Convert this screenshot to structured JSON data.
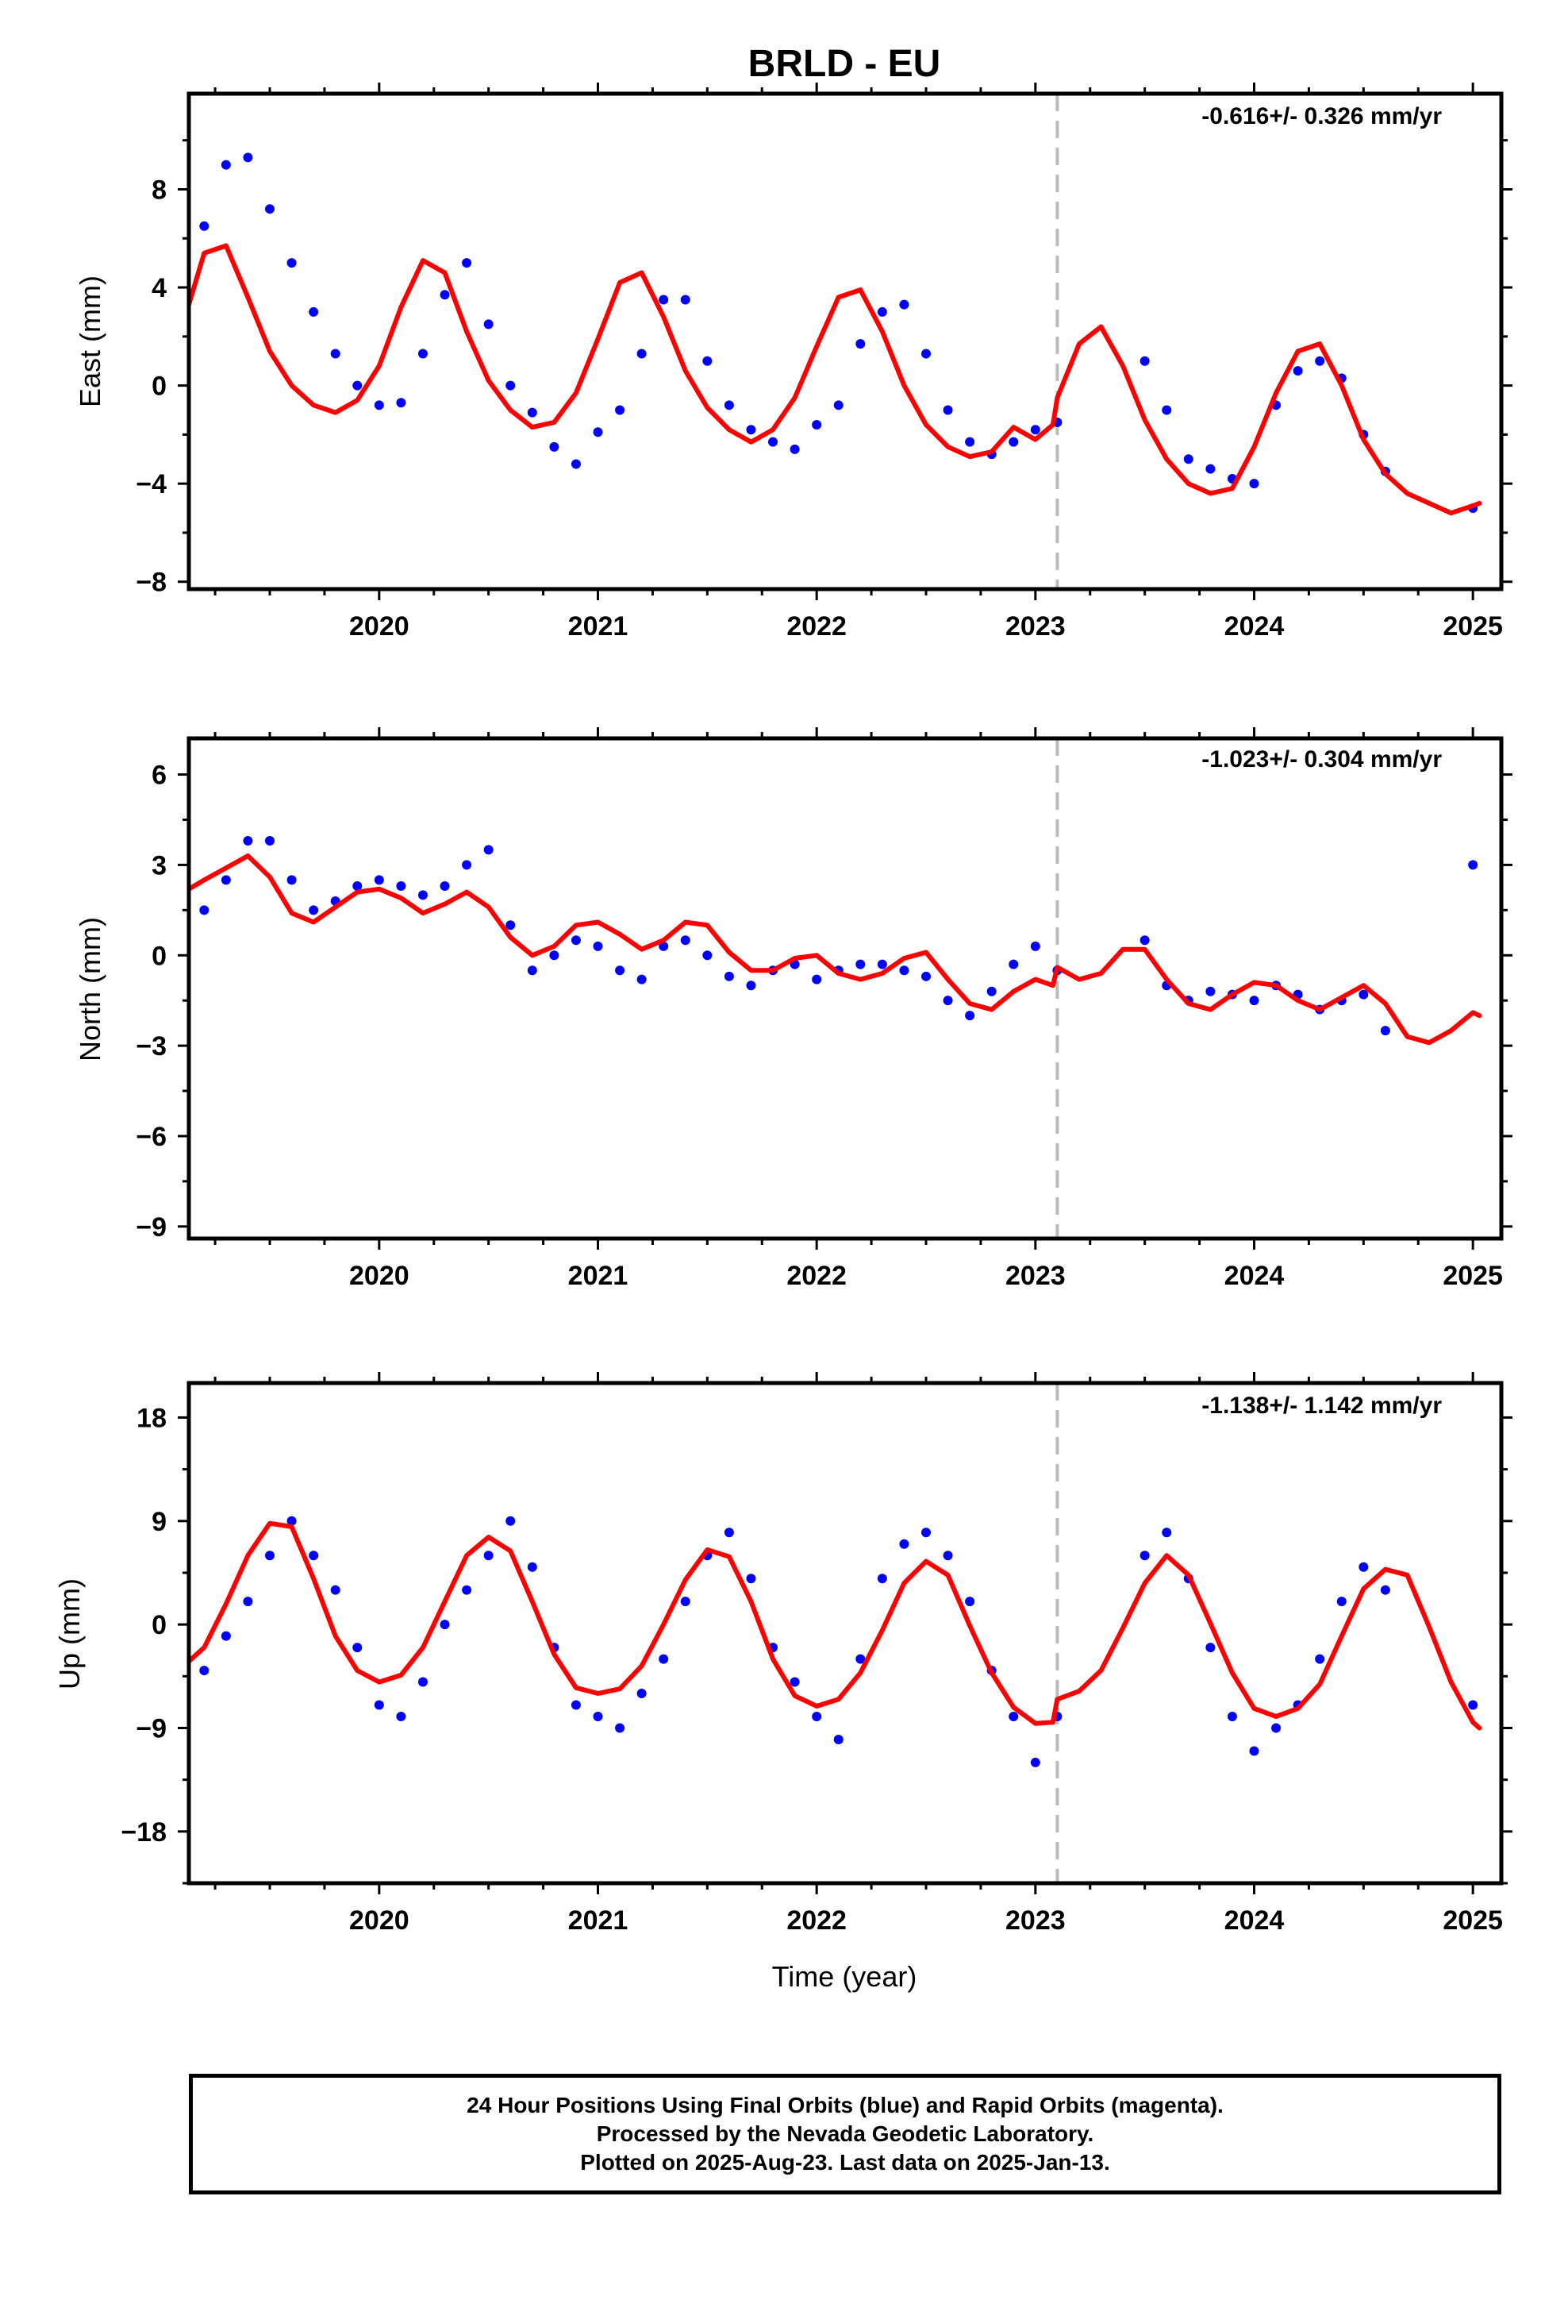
{
  "title": "BRLD - EU",
  "xlabel": "Time (year)",
  "footer": {
    "line1": "24 Hour Positions Using Final Orbits (blue) and Rapid Orbits (magenta).",
    "line2": "Processed by the Nevada Geodetic Laboratory.",
    "line3": "Plotted on 2025-Aug-23. Last data on 2025-Jan-13."
  },
  "colors": {
    "final_orbits": "#0000ff",
    "model_fit": "#ff0000",
    "antenna_change": "#bbbbbb"
  },
  "chart_data": [
    {
      "type": "scatter",
      "ylabel": "East (mm)",
      "rate": "-0.616+/- 0.326 mm/yr",
      "xlim": [
        2019.13,
        2025.13
      ],
      "ylim": [
        -8.3,
        11.9
      ],
      "xticks": [
        2020,
        2021,
        2022,
        2023,
        2024,
        2025
      ],
      "yticks": [
        -8,
        -4,
        0,
        4,
        8
      ],
      "grid": false,
      "discontinuity_x": 2023.1,
      "series": [
        {
          "type": "scatter",
          "x": [
            2019.2,
            2019.3,
            2019.4,
            2019.5,
            2019.6,
            2019.7,
            2019.8,
            2019.9,
            2020.0,
            2020.1,
            2020.2,
            2020.3,
            2020.4,
            2020.5,
            2020.6,
            2020.7,
            2020.8,
            2020.9,
            2021.0,
            2021.1,
            2021.2,
            2021.3,
            2021.4,
            2021.5,
            2021.6,
            2021.7,
            2021.8,
            2021.9,
            2022.0,
            2022.1,
            2022.2,
            2022.3,
            2022.4,
            2022.5,
            2022.6,
            2022.7,
            2022.8,
            2022.9,
            2023.0,
            2023.1,
            2023.5,
            2023.6,
            2023.7,
            2023.8,
            2023.9,
            2024.0,
            2024.1,
            2024.2,
            2024.3,
            2024.4,
            2024.5,
            2024.6,
            2025.0
          ],
          "y": [
            6.5,
            9.0,
            9.3,
            7.2,
            5.0,
            3.0,
            1.3,
            0.0,
            -0.8,
            -0.7,
            1.3,
            3.7,
            5.0,
            2.5,
            0.0,
            -1.1,
            -2.5,
            -3.2,
            -1.9,
            -1.0,
            1.3,
            3.5,
            3.5,
            1.0,
            -0.8,
            -1.8,
            -2.3,
            -2.6,
            -1.6,
            -0.8,
            1.7,
            3.0,
            3.3,
            1.3,
            -1.0,
            -2.3,
            -2.8,
            -2.3,
            -1.8,
            -1.5,
            1.0,
            -1.0,
            -3.0,
            -3.4,
            -3.8,
            -4.0,
            -0.8,
            0.6,
            1.0,
            0.3,
            -2.0,
            -3.5,
            -5.0
          ]
        },
        {
          "type": "line",
          "x": [
            2019.13,
            2019.2,
            2019.3,
            2019.4,
            2019.5,
            2019.6,
            2019.7,
            2019.8,
            2019.9,
            2020.0,
            2020.1,
            2020.2,
            2020.3,
            2020.4,
            2020.5,
            2020.6,
            2020.7,
            2020.8,
            2020.9,
            2021.0,
            2021.1,
            2021.2,
            2021.3,
            2021.4,
            2021.5,
            2021.6,
            2021.7,
            2021.8,
            2021.9,
            2022.0,
            2022.1,
            2022.2,
            2022.3,
            2022.4,
            2022.5,
            2022.6,
            2022.7,
            2022.8,
            2022.9,
            2023.0,
            2023.08,
            2023.1,
            2023.2,
            2023.3,
            2023.4,
            2023.5,
            2023.6,
            2023.7,
            2023.8,
            2023.9,
            2024.0,
            2024.1,
            2024.2,
            2024.3,
            2024.4,
            2024.5,
            2024.6,
            2024.7,
            2024.8,
            2024.9,
            2025.0,
            2025.03
          ],
          "y": [
            3.3,
            5.4,
            5.7,
            3.6,
            1.4,
            0.0,
            -0.8,
            -1.1,
            -0.6,
            0.8,
            3.2,
            5.1,
            4.6,
            2.2,
            0.2,
            -1.0,
            -1.7,
            -1.5,
            -0.3,
            1.9,
            4.2,
            4.6,
            2.8,
            0.6,
            -0.9,
            -1.8,
            -2.3,
            -1.8,
            -0.5,
            1.6,
            3.6,
            3.9,
            2.2,
            0.0,
            -1.6,
            -2.5,
            -2.9,
            -2.7,
            -1.7,
            -2.2,
            -1.6,
            -0.5,
            1.7,
            2.4,
            0.8,
            -1.4,
            -3.0,
            -4.0,
            -4.4,
            -4.2,
            -2.5,
            -0.3,
            1.4,
            1.7,
            0.0,
            -2.2,
            -3.6,
            -4.4,
            -4.8,
            -5.2,
            -4.9,
            -4.8
          ]
        }
      ]
    },
    {
      "type": "scatter",
      "ylabel": "North (mm)",
      "rate": "-1.023+/- 0.304 mm/yr",
      "xlim": [
        2019.13,
        2025.13
      ],
      "ylim": [
        -9.4,
        7.2
      ],
      "xticks": [
        2020,
        2021,
        2022,
        2023,
        2024,
        2025
      ],
      "yticks": [
        -9,
        -6,
        -3,
        0,
        3,
        6
      ],
      "grid": false,
      "discontinuity_x": 2023.1,
      "series": [
        {
          "type": "scatter",
          "x": [
            2019.2,
            2019.3,
            2019.4,
            2019.5,
            2019.6,
            2019.7,
            2019.8,
            2019.9,
            2020.0,
            2020.1,
            2020.2,
            2020.3,
            2020.4,
            2020.5,
            2020.6,
            2020.7,
            2020.8,
            2020.9,
            2021.0,
            2021.1,
            2021.2,
            2021.3,
            2021.4,
            2021.5,
            2021.6,
            2021.7,
            2021.8,
            2021.9,
            2022.0,
            2022.1,
            2022.2,
            2022.3,
            2022.4,
            2022.5,
            2022.6,
            2022.7,
            2022.8,
            2022.9,
            2023.0,
            2023.1,
            2023.5,
            2023.6,
            2023.7,
            2023.8,
            2023.9,
            2024.0,
            2024.1,
            2024.2,
            2024.3,
            2024.4,
            2024.5,
            2024.6,
            2025.0
          ],
          "y": [
            1.5,
            2.5,
            3.8,
            3.8,
            2.5,
            1.5,
            1.8,
            2.3,
            2.5,
            2.3,
            2.0,
            2.3,
            3.0,
            3.5,
            1.0,
            -0.5,
            0.0,
            0.5,
            0.3,
            -0.5,
            -0.8,
            0.3,
            0.5,
            0.0,
            -0.7,
            -1.0,
            -0.5,
            -0.3,
            -0.8,
            -0.5,
            -0.3,
            -0.3,
            -0.5,
            -0.7,
            -1.5,
            -2.0,
            -1.2,
            -0.3,
            0.3,
            -0.5,
            0.5,
            -1.0,
            -1.5,
            -1.2,
            -1.3,
            -1.5,
            -1.0,
            -1.3,
            -1.8,
            -1.5,
            -1.3,
            -2.5,
            3.0
          ]
        },
        {
          "type": "line",
          "x": [
            2019.13,
            2019.2,
            2019.3,
            2019.4,
            2019.5,
            2019.6,
            2019.7,
            2019.8,
            2019.9,
            2020.0,
            2020.1,
            2020.2,
            2020.3,
            2020.4,
            2020.5,
            2020.6,
            2020.7,
            2020.8,
            2020.9,
            2021.0,
            2021.1,
            2021.2,
            2021.3,
            2021.4,
            2021.5,
            2021.6,
            2021.7,
            2021.8,
            2021.9,
            2022.0,
            2022.1,
            2022.2,
            2022.3,
            2022.4,
            2022.5,
            2022.6,
            2022.7,
            2022.8,
            2022.9,
            2023.0,
            2023.08,
            2023.1,
            2023.2,
            2023.3,
            2023.4,
            2023.5,
            2023.6,
            2023.7,
            2023.8,
            2023.9,
            2024.0,
            2024.1,
            2024.2,
            2024.3,
            2024.4,
            2024.5,
            2024.6,
            2024.7,
            2024.8,
            2024.9,
            2025.0,
            2025.03
          ],
          "y": [
            2.2,
            2.5,
            2.9,
            3.3,
            2.6,
            1.4,
            1.1,
            1.6,
            2.1,
            2.2,
            1.9,
            1.4,
            1.7,
            2.1,
            1.6,
            0.6,
            0.0,
            0.3,
            1.0,
            1.1,
            0.7,
            0.2,
            0.5,
            1.1,
            1.0,
            0.1,
            -0.5,
            -0.5,
            -0.1,
            0.0,
            -0.6,
            -0.8,
            -0.6,
            -0.1,
            0.1,
            -0.8,
            -1.6,
            -1.8,
            -1.2,
            -0.8,
            -1.0,
            -0.4,
            -0.8,
            -0.6,
            0.2,
            0.2,
            -0.8,
            -1.6,
            -1.8,
            -1.3,
            -0.9,
            -1.0,
            -1.5,
            -1.8,
            -1.4,
            -1.0,
            -1.6,
            -2.7,
            -2.9,
            -2.5,
            -1.9,
            -2.0
          ]
        }
      ]
    },
    {
      "type": "scatter",
      "ylabel": "Up (mm)",
      "rate": "-1.138+/- 1.142 mm/yr",
      "xlim": [
        2019.13,
        2025.13
      ],
      "ylim": [
        -22.5,
        21
      ],
      "xticks": [
        2020,
        2021,
        2022,
        2023,
        2024,
        2025
      ],
      "yticks": [
        -18,
        -9,
        0,
        9,
        18
      ],
      "grid": false,
      "discontinuity_x": 2023.1,
      "series": [
        {
          "type": "scatter",
          "x": [
            2019.2,
            2019.3,
            2019.4,
            2019.5,
            2019.6,
            2019.7,
            2019.8,
            2019.9,
            2020.0,
            2020.1,
            2020.2,
            2020.3,
            2020.4,
            2020.5,
            2020.6,
            2020.7,
            2020.8,
            2020.9,
            2021.0,
            2021.1,
            2021.2,
            2021.3,
            2021.4,
            2021.5,
            2021.6,
            2021.7,
            2021.8,
            2021.9,
            2022.0,
            2022.1,
            2022.2,
            2022.3,
            2022.4,
            2022.5,
            2022.6,
            2022.7,
            2022.8,
            2022.9,
            2023.0,
            2023.1,
            2023.5,
            2023.6,
            2023.7,
            2023.8,
            2023.9,
            2024.0,
            2024.1,
            2024.2,
            2024.3,
            2024.4,
            2024.5,
            2024.6,
            2025.0
          ],
          "y": [
            -4.0,
            -1.0,
            2.0,
            6.0,
            9.0,
            6.0,
            3.0,
            -2.0,
            -7.0,
            -8.0,
            -5.0,
            0.0,
            3.0,
            6.0,
            9.0,
            5.0,
            -2.0,
            -7.0,
            -8.0,
            -9.0,
            -6.0,
            -3.0,
            2.0,
            6.0,
            8.0,
            4.0,
            -2.0,
            -5.0,
            -8.0,
            -10.0,
            -3.0,
            4.0,
            7.0,
            8.0,
            6.0,
            2.0,
            -4.0,
            -8.0,
            -12.0,
            -8.0,
            6.0,
            8.0,
            4.0,
            -2.0,
            -8.0,
            -11.0,
            -9.0,
            -7.0,
            -3.0,
            2.0,
            5.0,
            3.0,
            -7.0
          ]
        },
        {
          "type": "line",
          "x": [
            2019.13,
            2019.2,
            2019.3,
            2019.4,
            2019.5,
            2019.6,
            2019.7,
            2019.8,
            2019.9,
            2020.0,
            2020.1,
            2020.2,
            2020.3,
            2020.4,
            2020.5,
            2020.6,
            2020.7,
            2020.8,
            2020.9,
            2021.0,
            2021.1,
            2021.2,
            2021.3,
            2021.4,
            2021.5,
            2021.6,
            2021.7,
            2021.8,
            2021.9,
            2022.0,
            2022.1,
            2022.2,
            2022.3,
            2022.4,
            2022.5,
            2022.6,
            2022.7,
            2022.8,
            2022.9,
            2023.0,
            2023.08,
            2023.1,
            2023.2,
            2023.3,
            2023.4,
            2023.5,
            2023.6,
            2023.7,
            2023.8,
            2023.9,
            2024.0,
            2024.1,
            2024.2,
            2024.3,
            2024.4,
            2024.5,
            2024.6,
            2024.7,
            2024.8,
            2024.9,
            2025.0,
            2025.03
          ],
          "y": [
            -3.2,
            -2.0,
            1.8,
            6.0,
            8.8,
            8.5,
            4.0,
            -1.0,
            -4.0,
            -5.0,
            -4.4,
            -2.0,
            2.0,
            6.0,
            7.6,
            6.4,
            2.0,
            -2.6,
            -5.5,
            -6.0,
            -5.6,
            -3.6,
            0.0,
            3.9,
            6.5,
            5.9,
            2.0,
            -3.0,
            -6.2,
            -7.1,
            -6.5,
            -4.2,
            -0.5,
            3.6,
            5.5,
            4.3,
            -0.1,
            -4.2,
            -7.2,
            -8.6,
            -8.5,
            -6.5,
            -5.8,
            -4.0,
            -0.3,
            3.6,
            6.0,
            4.3,
            0.1,
            -4.2,
            -7.3,
            -8.0,
            -7.3,
            -5.2,
            -1.0,
            3.1,
            4.8,
            4.3,
            -0.2,
            -5.0,
            -8.5,
            -9.0
          ]
        }
      ]
    }
  ]
}
